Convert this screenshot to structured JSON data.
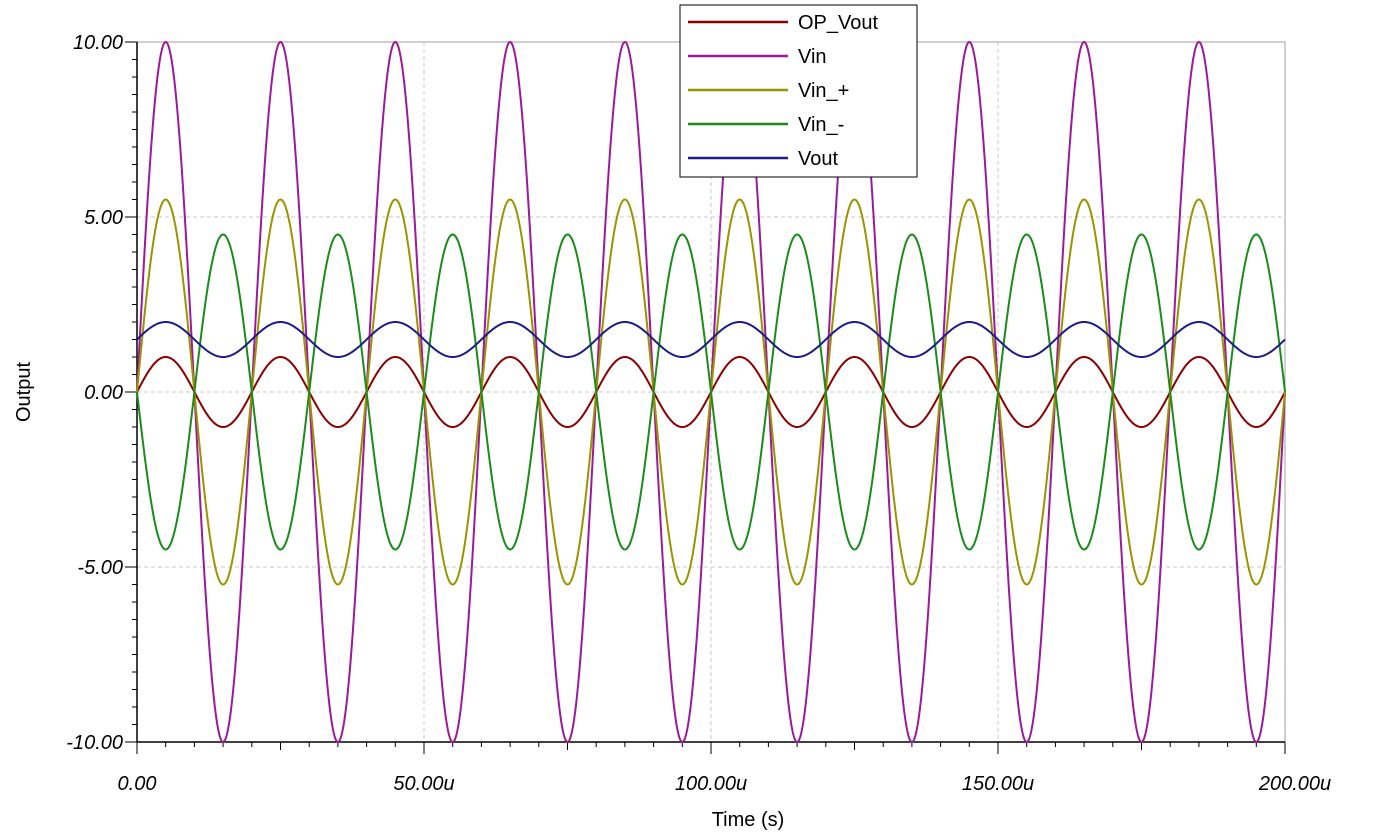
{
  "chart_data": {
    "type": "line",
    "xlabel": "Time (s)",
    "ylabel": "Output",
    "xlim": [
      0,
      200
    ],
    "ylim": [
      -10,
      10
    ],
    "x_unit_suffix": "u",
    "x_ticks": [
      "0.00",
      "50.00u",
      "100.00u",
      "150.00u",
      "200.00u"
    ],
    "y_ticks": [
      "10.00",
      "5.00",
      "0.00",
      "-5.00",
      "-10.00"
    ],
    "x_tick_values": [
      0,
      50,
      100,
      150,
      200
    ],
    "y_tick_values": [
      10,
      5,
      0,
      -5,
      -10
    ],
    "grid": true,
    "legend_position": "top-center",
    "signal_frequency_khz": 50,
    "series": [
      {
        "name": "OP_Vout",
        "color": "#8b0000",
        "amplitude": 1.0,
        "offset": 0.0,
        "phase_sign": 1
      },
      {
        "name": "Vin",
        "color": "#9b1a9b",
        "amplitude": 10.0,
        "offset": 0.0,
        "phase_sign": 1
      },
      {
        "name": "Vin_+",
        "color": "#9a9400",
        "amplitude": 5.5,
        "offset": 0.0,
        "phase_sign": 1
      },
      {
        "name": "Vin_-",
        "color": "#1a8c1a",
        "amplitude": 4.5,
        "offset": 0.0,
        "phase_sign": -1
      },
      {
        "name": "Vout",
        "color": "#1c1c8c",
        "amplitude": 0.5,
        "offset": 1.5,
        "phase_sign": 1
      }
    ]
  }
}
